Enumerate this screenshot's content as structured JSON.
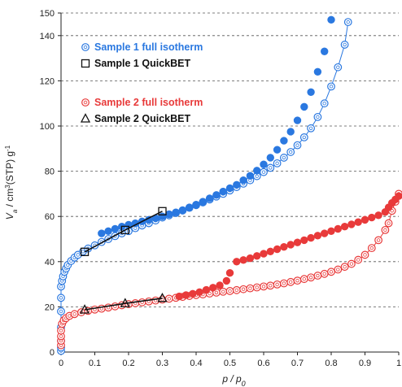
{
  "chart_data": {
    "type": "scatter",
    "xlabel": "p / p0",
    "ylabel": "Va / cm3(STP) g-1",
    "xlim": [
      0,
      1
    ],
    "ylim": [
      0,
      150
    ],
    "x_ticks": [
      0,
      0.1,
      0.2,
      0.3,
      0.4,
      0.5,
      0.6,
      0.7,
      0.8,
      0.9,
      1
    ],
    "x_tick_labels": [
      "0",
      "0.1",
      "0.2",
      "0.3",
      "0.4",
      "0.5",
      "0.6",
      "0.7",
      "0.8",
      "0.9",
      "1"
    ],
    "y_ticks": [
      0,
      20,
      40,
      60,
      80,
      100,
      120,
      140,
      150
    ],
    "y_tick_labels": [
      "0",
      "20",
      "40",
      "60",
      "80",
      "100",
      "120",
      "140",
      "150"
    ],
    "grid": "horizontal-dashed",
    "legend_position": "top-left",
    "legend": [
      {
        "label": "Sample 1 full isotherm",
        "marker": "circle-open",
        "color": "#2a78e0"
      },
      {
        "label": "Sample 1 QuickBET",
        "marker": "square-open",
        "color": "#111111"
      },
      {
        "label": "Sample 2 full isotherm",
        "marker": "circle-open",
        "color": "#e83a3a"
      },
      {
        "label": "Sample 2 QuickBET",
        "marker": "triangle-open",
        "color": "#111111"
      }
    ],
    "series": [
      {
        "name": "Sample 1 full isotherm",
        "color": "#2a78e0",
        "marker": "circle-open",
        "line": true,
        "points": [
          [
            0.0,
            0.5
          ],
          [
            0.0,
            2.0
          ],
          [
            0.0,
            5.0
          ],
          [
            0.0,
            11.0
          ],
          [
            0.0,
            18.0
          ],
          [
            0.0,
            24.0
          ],
          [
            0.0,
            29.0
          ],
          [
            0.003,
            31.5
          ],
          [
            0.006,
            33.5
          ],
          [
            0.01,
            35.5
          ],
          [
            0.015,
            37.0
          ],
          [
            0.02,
            38.5
          ],
          [
            0.03,
            40.3
          ],
          [
            0.04,
            41.8
          ],
          [
            0.05,
            43.0
          ],
          [
            0.065,
            44.5
          ],
          [
            0.08,
            45.8
          ],
          [
            0.1,
            47.2
          ],
          [
            0.12,
            48.7
          ],
          [
            0.14,
            50.0
          ],
          [
            0.16,
            51.3
          ],
          [
            0.18,
            52.5
          ],
          [
            0.2,
            53.5
          ],
          [
            0.22,
            54.8
          ],
          [
            0.24,
            56.0
          ],
          [
            0.26,
            57.0
          ],
          [
            0.28,
            58.2
          ],
          [
            0.3,
            59.5
          ],
          [
            0.32,
            60.5
          ],
          [
            0.34,
            61.5
          ],
          [
            0.36,
            62.6
          ],
          [
            0.38,
            63.8
          ],
          [
            0.4,
            65.0
          ],
          [
            0.42,
            66.2
          ],
          [
            0.44,
            67.5
          ],
          [
            0.46,
            68.8
          ],
          [
            0.48,
            70.0
          ],
          [
            0.5,
            71.5
          ],
          [
            0.52,
            73.0
          ],
          [
            0.54,
            74.5
          ],
          [
            0.56,
            76.0
          ],
          [
            0.58,
            77.8
          ],
          [
            0.6,
            79.6
          ],
          [
            0.62,
            81.5
          ],
          [
            0.64,
            83.5
          ],
          [
            0.66,
            86.0
          ],
          [
            0.68,
            88.5
          ],
          [
            0.7,
            91.5
          ],
          [
            0.72,
            95.0
          ],
          [
            0.74,
            99.0
          ],
          [
            0.76,
            104.0
          ],
          [
            0.78,
            110.0
          ],
          [
            0.8,
            117.5
          ],
          [
            0.82,
            126.0
          ],
          [
            0.84,
            136.0
          ],
          [
            0.85,
            146.0
          ]
        ]
      },
      {
        "name": "",
        "color": "#2a78e0",
        "marker": "circle-filled",
        "line": false,
        "points": [
          [
            0.8,
            147.0
          ],
          [
            0.78,
            133.0
          ],
          [
            0.76,
            124.0
          ],
          [
            0.74,
            115.0
          ],
          [
            0.72,
            108.5
          ],
          [
            0.7,
            102.5
          ],
          [
            0.68,
            97.5
          ],
          [
            0.66,
            93.5
          ],
          [
            0.64,
            89.5
          ],
          [
            0.62,
            86.0
          ],
          [
            0.6,
            83.0
          ],
          [
            0.58,
            80.3
          ],
          [
            0.56,
            78.0
          ],
          [
            0.54,
            76.0
          ],
          [
            0.52,
            74.0
          ],
          [
            0.5,
            72.5
          ],
          [
            0.48,
            71.0
          ],
          [
            0.46,
            69.5
          ],
          [
            0.44,
            68.0
          ],
          [
            0.42,
            66.5
          ],
          [
            0.4,
            65.2
          ],
          [
            0.38,
            64.0
          ],
          [
            0.36,
            62.8
          ],
          [
            0.34,
            61.8
          ],
          [
            0.32,
            61.0
          ],
          [
            0.3,
            60.0
          ],
          [
            0.28,
            59.2
          ],
          [
            0.26,
            58.5
          ],
          [
            0.24,
            57.8
          ],
          [
            0.22,
            57.0
          ],
          [
            0.2,
            56.3
          ],
          [
            0.18,
            55.5
          ],
          [
            0.16,
            54.5
          ],
          [
            0.14,
            53.5
          ],
          [
            0.12,
            52.5
          ]
        ]
      },
      {
        "name": "Sample 1 QuickBET",
        "color": "#111111",
        "marker": "square-open",
        "line": true,
        "points": [
          [
            0.07,
            44.3
          ],
          [
            0.19,
            54.0
          ],
          [
            0.3,
            62.3
          ]
        ]
      },
      {
        "name": "Sample 2 full isotherm",
        "color": "#e83a3a",
        "marker": "circle-open",
        "line": true,
        "points": [
          [
            0.0,
            3.0
          ],
          [
            0.0,
            5.0
          ],
          [
            0.0,
            7.0
          ],
          [
            0.0,
            9.5
          ],
          [
            0.003,
            12.5
          ],
          [
            0.008,
            14.0
          ],
          [
            0.015,
            15.0
          ],
          [
            0.025,
            16.0
          ],
          [
            0.04,
            16.8
          ],
          [
            0.06,
            17.6
          ],
          [
            0.08,
            18.2
          ],
          [
            0.1,
            18.8
          ],
          [
            0.12,
            19.2
          ],
          [
            0.14,
            19.7
          ],
          [
            0.16,
            20.2
          ],
          [
            0.18,
            20.7
          ],
          [
            0.2,
            21.2
          ],
          [
            0.22,
            21.6
          ],
          [
            0.24,
            22.0
          ],
          [
            0.26,
            22.4
          ],
          [
            0.28,
            22.8
          ],
          [
            0.3,
            23.2
          ],
          [
            0.32,
            23.6
          ],
          [
            0.34,
            24.0
          ],
          [
            0.36,
            24.4
          ],
          [
            0.38,
            24.8
          ],
          [
            0.4,
            25.2
          ],
          [
            0.42,
            25.5
          ],
          [
            0.44,
            25.9
          ],
          [
            0.46,
            26.3
          ],
          [
            0.48,
            26.7
          ],
          [
            0.5,
            27.0
          ],
          [
            0.52,
            27.4
          ],
          [
            0.54,
            27.8
          ],
          [
            0.56,
            28.2
          ],
          [
            0.58,
            28.6
          ],
          [
            0.6,
            29.0
          ],
          [
            0.62,
            29.4
          ],
          [
            0.64,
            29.9
          ],
          [
            0.66,
            30.4
          ],
          [
            0.68,
            31.0
          ],
          [
            0.7,
            31.6
          ],
          [
            0.72,
            32.3
          ],
          [
            0.74,
            33.0
          ],
          [
            0.76,
            33.8
          ],
          [
            0.78,
            34.6
          ],
          [
            0.8,
            35.5
          ],
          [
            0.82,
            36.5
          ],
          [
            0.84,
            37.7
          ],
          [
            0.86,
            39.0
          ],
          [
            0.88,
            40.8
          ],
          [
            0.9,
            43.0
          ],
          [
            0.92,
            46.0
          ],
          [
            0.94,
            49.5
          ],
          [
            0.96,
            54.0
          ],
          [
            0.97,
            57.0
          ],
          [
            0.98,
            62.5
          ],
          [
            0.99,
            66.5
          ],
          [
            1.0,
            70.0
          ]
        ]
      },
      {
        "name": "",
        "color": "#e83a3a",
        "marker": "circle-filled",
        "line": false,
        "points": [
          [
            1.0,
            69.0
          ],
          [
            0.99,
            67.5
          ],
          [
            0.98,
            66.0
          ],
          [
            0.97,
            64.0
          ],
          [
            0.96,
            62.0
          ],
          [
            0.94,
            60.5
          ],
          [
            0.92,
            59.5
          ],
          [
            0.9,
            58.5
          ],
          [
            0.88,
            57.5
          ],
          [
            0.86,
            56.5
          ],
          [
            0.84,
            55.5
          ],
          [
            0.82,
            54.5
          ],
          [
            0.8,
            53.5
          ],
          [
            0.78,
            52.5
          ],
          [
            0.76,
            51.5
          ],
          [
            0.74,
            50.5
          ],
          [
            0.72,
            49.5
          ],
          [
            0.7,
            48.5
          ],
          [
            0.68,
            47.5
          ],
          [
            0.66,
            46.5
          ],
          [
            0.64,
            45.5
          ],
          [
            0.62,
            44.5
          ],
          [
            0.6,
            43.5
          ],
          [
            0.58,
            42.5
          ],
          [
            0.56,
            41.5
          ],
          [
            0.54,
            40.7
          ],
          [
            0.52,
            40.0
          ],
          [
            0.5,
            35.0
          ],
          [
            0.49,
            31.5
          ],
          [
            0.47,
            29.5
          ],
          [
            0.45,
            28.5
          ],
          [
            0.43,
            27.5
          ],
          [
            0.41,
            26.5
          ],
          [
            0.39,
            25.8
          ],
          [
            0.37,
            25.2
          ],
          [
            0.35,
            24.6
          ]
        ]
      },
      {
        "name": "Sample 2 QuickBET",
        "color": "#111111",
        "marker": "triangle-open",
        "line": true,
        "points": [
          [
            0.07,
            18.7
          ],
          [
            0.19,
            21.5
          ],
          [
            0.3,
            23.8
          ]
        ]
      }
    ]
  }
}
